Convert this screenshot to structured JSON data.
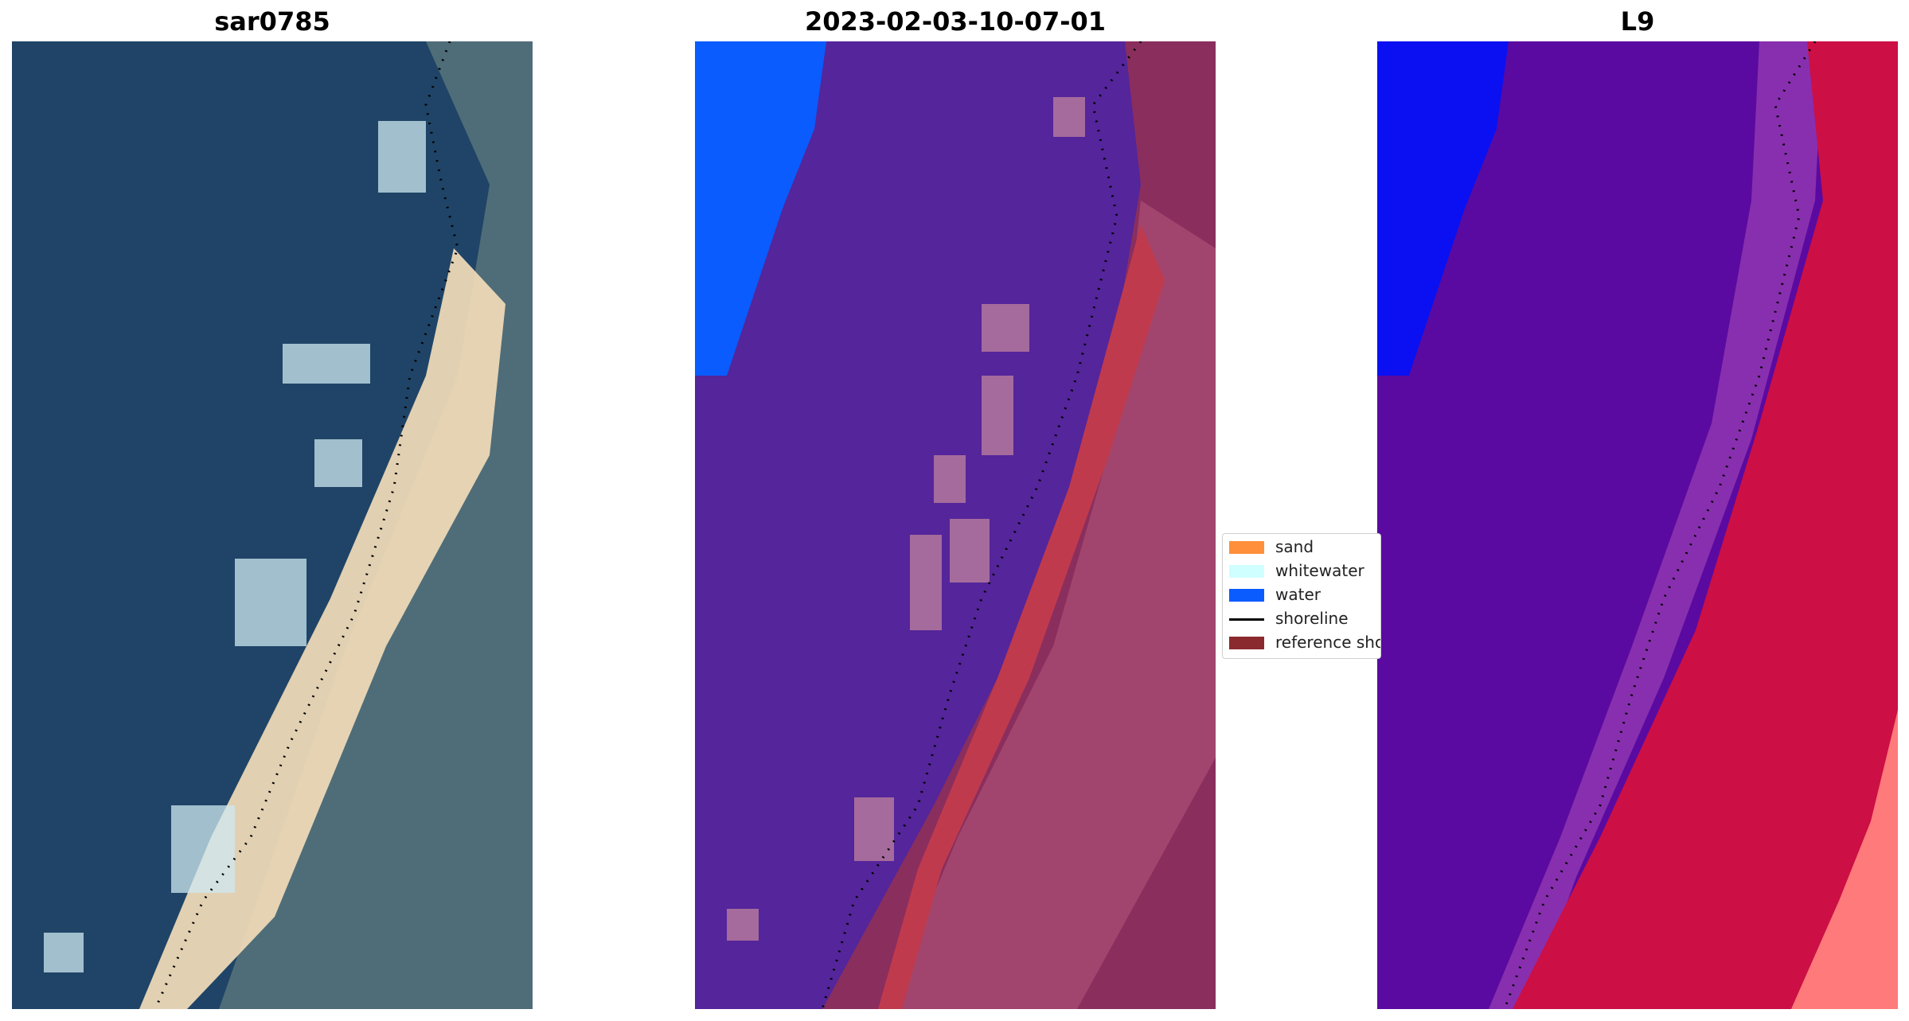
{
  "panels": [
    {
      "title": "sar0785"
    },
    {
      "title": "2023-02-03-10-07-01"
    },
    {
      "title": "L9"
    }
  ],
  "legend": {
    "items": [
      {
        "label": "sand",
        "color": "#ff8f3a",
        "kind": "patch"
      },
      {
        "label": "whitewater",
        "color": "#cfffff",
        "kind": "patch"
      },
      {
        "label": "water",
        "color": "#0a5cff",
        "kind": "patch"
      },
      {
        "label": "shoreline",
        "color": "#000000",
        "kind": "line"
      },
      {
        "label": "reference shoreline",
        "color": "#8b2a2e",
        "kind": "patch"
      }
    ]
  },
  "colors": {
    "rgb_water": "#1f4467",
    "rgb_sand": "#f2dcb8",
    "rgb_land": "#4f6d78",
    "rgb_foam": "#cfe8f0",
    "class_water": "#0a5cff",
    "class_sea": "#54259b",
    "class_whitewater": "#a56b9c",
    "class_sand": "#c03a4d",
    "class_land": "#8a2e5e",
    "index_water": "#0a10f2",
    "index_sea": "#5a0aa0",
    "index_land": "#cc0f45",
    "index_bright": "#ff7a7a"
  }
}
